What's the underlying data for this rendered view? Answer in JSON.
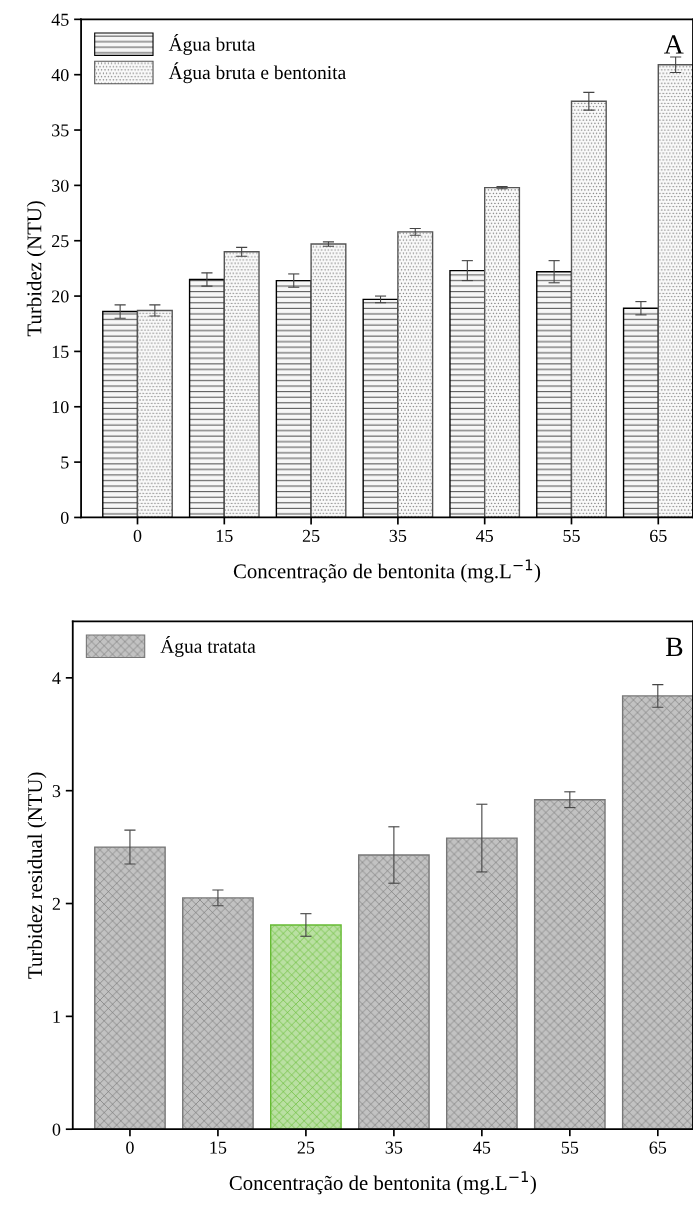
{
  "chart_data": [
    {
      "type": "bar",
      "xlabel": "Concentração de bentonita (mg.L$^{−1}$)",
      "ylabel": "Turbidez (NTU)",
      "annotations": [
        "A"
      ],
      "categories": [
        "0",
        "15",
        "25",
        "35",
        "45",
        "55",
        "65"
      ],
      "series": [
        {
          "name": "Água bruta",
          "color": "#000000",
          "values": [
            18.6,
            21.5,
            21.4,
            19.7,
            22.3,
            22.2,
            18.9
          ],
          "errors": [
            0.6,
            0.6,
            0.6,
            0.3,
            0.9,
            1.0,
            0.6
          ]
        },
        {
          "name": "Água bruta e bentonita",
          "color": "#555555",
          "values": [
            18.7,
            24.0,
            24.7,
            25.8,
            29.8,
            37.6,
            40.9
          ],
          "errors": [
            0.5,
            0.4,
            0.2,
            0.3,
            0.1,
            0.8,
            0.7
          ]
        }
      ],
      "ylim": [
        0,
        45
      ],
      "yticks": [
        0,
        5,
        10,
        15,
        20,
        25,
        30,
        35,
        40,
        45
      ],
      "grid": false,
      "legend": "top left"
    },
    {
      "type": "bar",
      "xlabel": "Concentração de bentonita (mg.L$^{−1}$)",
      "ylabel": "Turbidez residual (NTU)",
      "annotations": [
        "B"
      ],
      "categories": [
        "0",
        "15",
        "25",
        "35",
        "45",
        "55",
        "65"
      ],
      "series": [
        {
          "name": "Água tratata",
          "colors": [
            "#777777",
            "#777777",
            "#66bb33",
            "#777777",
            "#777777",
            "#777777",
            "#777777"
          ],
          "values": [
            2.5,
            2.05,
            1.81,
            2.43,
            2.58,
            2.92,
            3.84
          ],
          "errors": [
            0.15,
            0.07,
            0.1,
            0.25,
            0.3,
            0.07,
            0.1
          ]
        }
      ],
      "ylim": [
        0,
        4.5
      ],
      "yticks": [
        0,
        1,
        2,
        3,
        4
      ],
      "grid": false,
      "legend": "top left"
    }
  ]
}
